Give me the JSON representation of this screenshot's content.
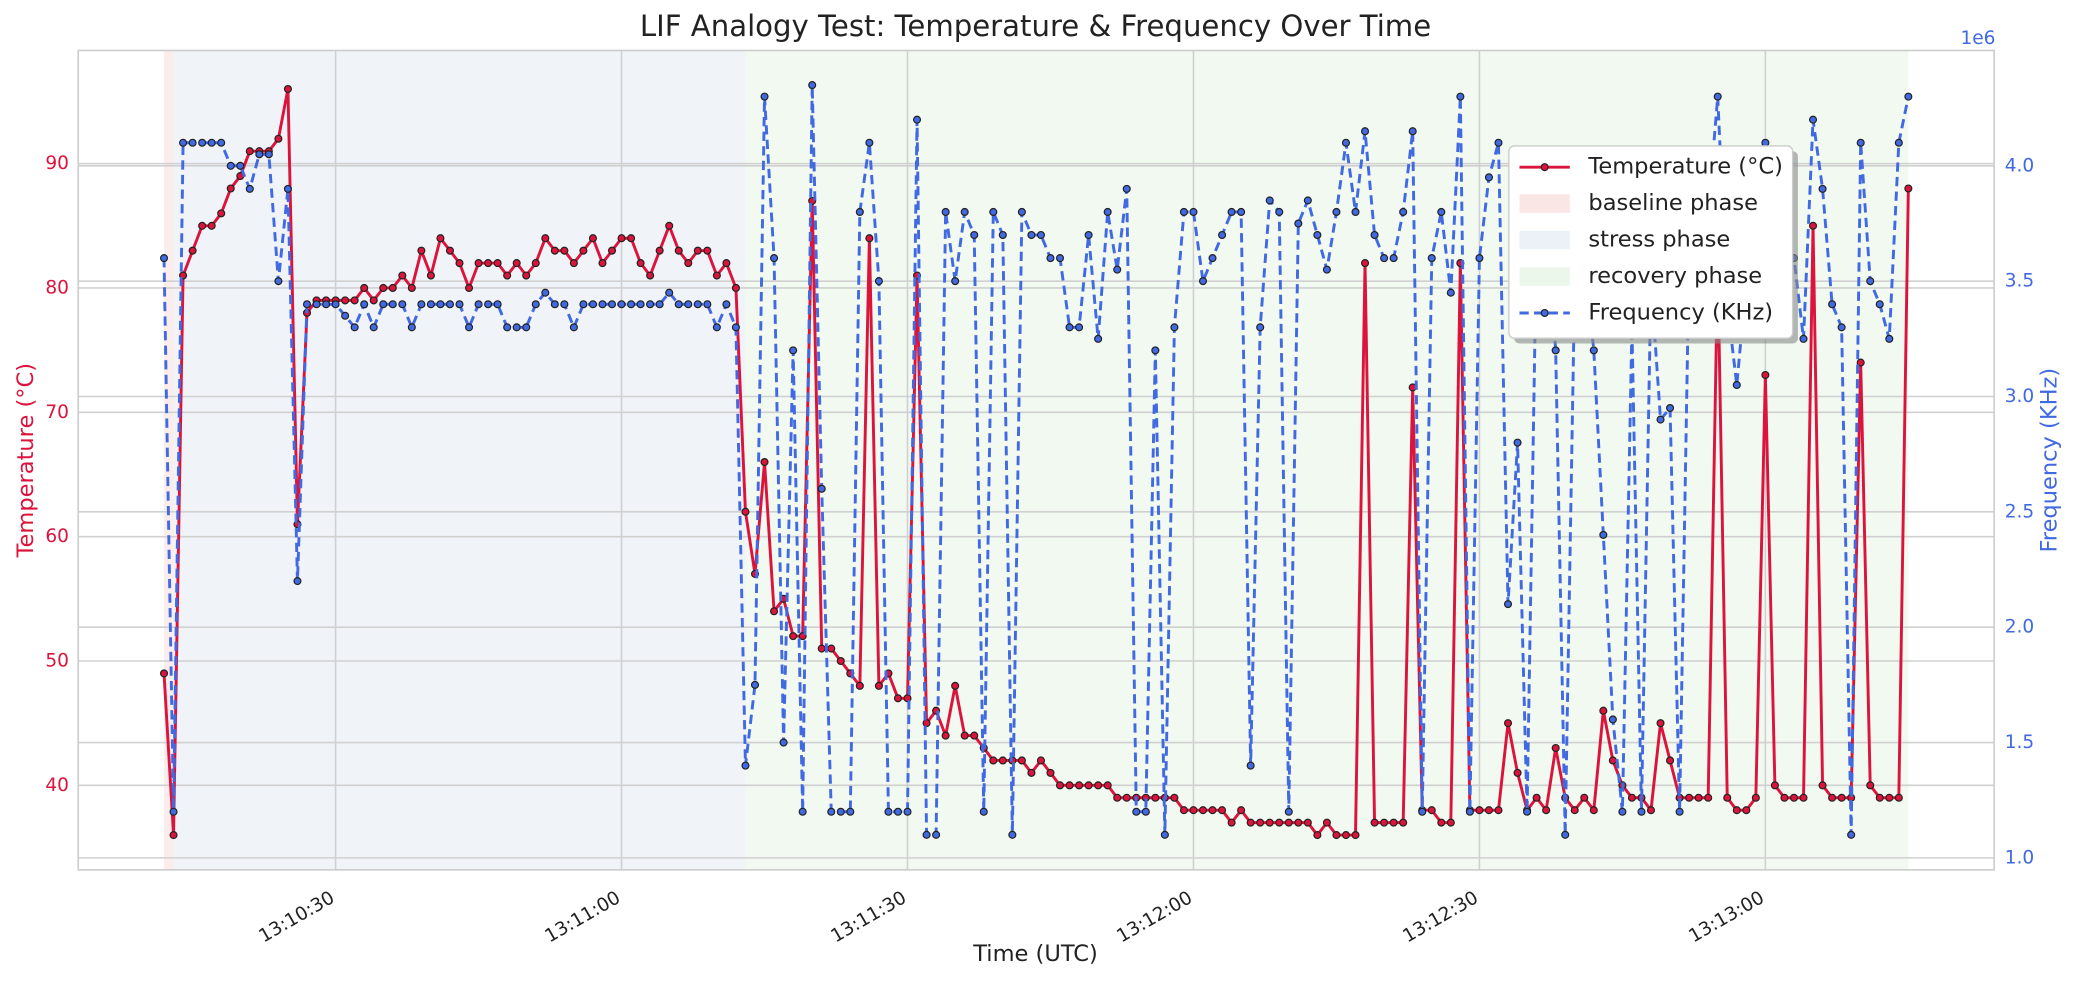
{
  "chart_data": {
    "type": "line",
    "title": "LIF Analogy Test: Temperature & Frequency Over Time",
    "x_label": "Time (UTC)",
    "y_label": "Temperature (°C)",
    "y2_label": "Frequency (KHz)",
    "y2_offset_label": "1e6",
    "xlim": [
      "13:10:03",
      "13:13:24"
    ],
    "xticks": [
      "13:10:30",
      "13:11:00",
      "13:11:30",
      "13:12:00",
      "13:12:30",
      "13:13:00"
    ],
    "ylim": [
      33.2,
      99.1
    ],
    "yticks": [
      40,
      50,
      60,
      70,
      80,
      90
    ],
    "y2lim": [
      0.948,
      4.5
    ],
    "y2ticks": [
      {
        "value": 1,
        "label": "1.0"
      },
      {
        "value": 1.5,
        "label": "1.5"
      },
      {
        "value": 2,
        "label": "2.0"
      },
      {
        "value": 2.5,
        "label": "2.5"
      },
      {
        "value": 3,
        "label": "3.0"
      },
      {
        "value": 3.5,
        "label": "3.5"
      },
      {
        "value": 4,
        "label": "4.0"
      }
    ],
    "grid": true,
    "legend": "upper right",
    "phases": [
      {
        "name": "baseline phase",
        "start": "13:10:12",
        "end": "13:10:13",
        "color": "#f9d6d6"
      },
      {
        "name": "stress phase",
        "start": "13:10:13",
        "end": "13:11:13",
        "color": "#dde7f1"
      },
      {
        "name": "recovery phase",
        "start": "13:11:13",
        "end": "13:13:15",
        "color": "#e0f1e0"
      }
    ],
    "x": [
      "13:10:12",
      "13:10:13",
      "13:10:14",
      "13:10:15",
      "13:10:16",
      "13:10:17",
      "13:10:18",
      "13:10:19",
      "13:10:20",
      "13:10:21",
      "13:10:22",
      "13:10:23",
      "13:10:24",
      "13:10:25",
      "13:10:26",
      "13:10:27",
      "13:10:28",
      "13:10:29",
      "13:10:30",
      "13:10:31",
      "13:10:32",
      "13:10:33",
      "13:10:34",
      "13:10:35",
      "13:10:36",
      "13:10:37",
      "13:10:38",
      "13:10:39",
      "13:10:40",
      "13:10:41",
      "13:10:42",
      "13:10:43",
      "13:10:44",
      "13:10:45",
      "13:10:46",
      "13:10:47",
      "13:10:48",
      "13:10:49",
      "13:10:50",
      "13:10:51",
      "13:10:52",
      "13:10:53",
      "13:10:54",
      "13:10:55",
      "13:10:56",
      "13:10:57",
      "13:10:58",
      "13:10:59",
      "13:11:00",
      "13:11:01",
      "13:11:02",
      "13:11:03",
      "13:11:04",
      "13:11:05",
      "13:11:06",
      "13:11:07",
      "13:11:08",
      "13:11:09",
      "13:11:10",
      "13:11:11",
      "13:11:12",
      "13:11:13",
      "13:11:14",
      "13:11:15",
      "13:11:16",
      "13:11:17",
      "13:11:18",
      "13:11:19",
      "13:11:20",
      "13:11:21",
      "13:11:22",
      "13:11:23",
      "13:11:24",
      "13:11:25",
      "13:11:26",
      "13:11:27",
      "13:11:28",
      "13:11:29",
      "13:11:30",
      "13:11:31",
      "13:11:32",
      "13:11:33",
      "13:11:34",
      "13:11:35",
      "13:11:36",
      "13:11:37",
      "13:11:38",
      "13:11:39",
      "13:11:40",
      "13:11:41",
      "13:11:42",
      "13:11:43",
      "13:11:44",
      "13:11:45",
      "13:11:46",
      "13:11:47",
      "13:11:48",
      "13:11:49",
      "13:11:50",
      "13:11:51",
      "13:11:52",
      "13:11:53",
      "13:11:54",
      "13:11:55",
      "13:11:56",
      "13:11:57",
      "13:11:58",
      "13:11:59",
      "13:12:00",
      "13:12:01",
      "13:12:02",
      "13:12:03",
      "13:12:04",
      "13:12:05",
      "13:12:06",
      "13:12:07",
      "13:12:08",
      "13:12:09",
      "13:12:10",
      "13:12:11",
      "13:12:12",
      "13:12:13",
      "13:12:14",
      "13:12:15",
      "13:12:16",
      "13:12:17",
      "13:12:18",
      "13:12:19",
      "13:12:20",
      "13:12:21",
      "13:12:22",
      "13:12:23",
      "13:12:24",
      "13:12:25",
      "13:12:26",
      "13:12:27",
      "13:12:28",
      "13:12:29",
      "13:12:30",
      "13:12:31",
      "13:12:32",
      "13:12:33",
      "13:12:34",
      "13:12:35",
      "13:12:36",
      "13:12:37",
      "13:12:38",
      "13:12:39",
      "13:12:40",
      "13:12:41",
      "13:12:42",
      "13:12:43",
      "13:12:44",
      "13:12:45",
      "13:12:46",
      "13:12:47",
      "13:12:48",
      "13:12:49",
      "13:12:50",
      "13:12:51",
      "13:12:52",
      "13:12:53",
      "13:12:54",
      "13:12:55",
      "13:12:56",
      "13:12:57",
      "13:12:58",
      "13:12:59",
      "13:13:00",
      "13:13:01",
      "13:13:02",
      "13:13:03",
      "13:13:04",
      "13:13:05",
      "13:13:06",
      "13:13:07",
      "13:13:08",
      "13:13:09",
      "13:13:10",
      "13:13:11",
      "13:13:12",
      "13:13:13",
      "13:13:14",
      "13:13:15"
    ],
    "series": [
      {
        "name": "Temperature (°C)",
        "color": "#dc143c",
        "dash": false,
        "axis": "y",
        "values": [
          49,
          36,
          81,
          83,
          85,
          85,
          86,
          88,
          89,
          91,
          91,
          91,
          92,
          96,
          61,
          78,
          79,
          79,
          79,
          79,
          79,
          80,
          79,
          80,
          80,
          81,
          80,
          83,
          81,
          84,
          83,
          82,
          80,
          82,
          82,
          82,
          81,
          82,
          81,
          82,
          84,
          83,
          83,
          82,
          83,
          84,
          82,
          83,
          84,
          84,
          82,
          81,
          83,
          85,
          83,
          82,
          83,
          83,
          81,
          82,
          80,
          62,
          57,
          66,
          54,
          55,
          52,
          52,
          87,
          51,
          51,
          50,
          49,
          48,
          84,
          48,
          49,
          47,
          47,
          81,
          45,
          46,
          44,
          48,
          44,
          44,
          43,
          42,
          42,
          42,
          42,
          41,
          42,
          41,
          40,
          40,
          40,
          40,
          40,
          40,
          39,
          39,
          39,
          39,
          39,
          39,
          39,
          38,
          38,
          38,
          38,
          38,
          37,
          38,
          37,
          37,
          37,
          37,
          37,
          37,
          37,
          36,
          37,
          36,
          36,
          36,
          82,
          37,
          37,
          37,
          37,
          72,
          38,
          38,
          37,
          37,
          82,
          38,
          38,
          38,
          38,
          45,
          41,
          38,
          39,
          38,
          43,
          39,
          38,
          39,
          38,
          46,
          42,
          40,
          39,
          39,
          38,
          45,
          42,
          39,
          39,
          39,
          39,
          82,
          39,
          38,
          38,
          39,
          73,
          40,
          39,
          39,
          39,
          85,
          40,
          39,
          39,
          39,
          74,
          40,
          39,
          39,
          39,
          88
        ]
      },
      {
        "name": "Frequency (KHz)",
        "color": "#4169e1",
        "dash": true,
        "axis": "y2",
        "values": [
          3.6,
          1.2,
          4.1,
          4.1,
          4.1,
          4.1,
          4.1,
          4.0,
          4.0,
          3.9,
          4.05,
          4.05,
          3.5,
          3.9,
          2.2,
          3.4,
          3.4,
          3.4,
          3.4,
          3.35,
          3.3,
          3.4,
          3.3,
          3.4,
          3.4,
          3.4,
          3.3,
          3.4,
          3.4,
          3.4,
          3.4,
          3.4,
          3.3,
          3.4,
          3.4,
          3.4,
          3.3,
          3.3,
          3.3,
          3.4,
          3.45,
          3.4,
          3.4,
          3.3,
          3.4,
          3.4,
          3.4,
          3.4,
          3.4,
          3.4,
          3.4,
          3.4,
          3.4,
          3.45,
          3.4,
          3.4,
          3.4,
          3.4,
          3.3,
          3.4,
          3.3,
          1.4,
          1.75,
          4.3,
          3.6,
          1.5,
          3.2,
          1.2,
          4.35,
          2.6,
          1.2,
          1.2,
          1.2,
          3.8,
          4.1,
          3.5,
          1.2,
          1.2,
          1.2,
          4.2,
          1.1,
          1.1,
          3.8,
          3.5,
          3.8,
          3.7,
          1.2,
          3.8,
          3.7,
          1.1,
          3.8,
          3.7,
          3.7,
          3.6,
          3.6,
          3.3,
          3.3,
          3.7,
          3.25,
          3.8,
          3.55,
          3.9,
          1.2,
          1.2,
          3.2,
          1.1,
          3.3,
          3.8,
          3.8,
          3.5,
          3.6,
          3.7,
          3.8,
          3.8,
          1.4,
          3.3,
          3.85,
          3.8,
          1.2,
          3.75,
          3.85,
          3.7,
          3.55,
          3.8,
          4.1,
          3.8,
          4.15,
          3.7,
          3.6,
          3.6,
          3.8,
          4.15,
          1.2,
          3.6,
          3.8,
          3.45,
          4.3,
          1.2,
          3.6,
          3.95,
          4.1,
          2.1,
          2.8,
          1.2,
          3.7,
          3.8,
          3.2,
          1.1,
          3.5,
          3.6,
          3.2,
          2.4,
          1.6,
          1.2,
          3.3,
          1.2,
          3.5,
          2.9,
          2.95,
          1.2,
          3.6,
          3.7,
          3.8,
          4.3,
          3.4,
          3.05,
          3.5,
          3.8,
          4.1,
          3.4,
          3.6,
          3.6,
          3.25,
          4.2,
          3.9,
          3.4,
          3.3,
          1.1,
          4.1,
          3.5,
          3.4,
          3.25,
          4.1,
          4.3
        ]
      }
    ]
  }
}
